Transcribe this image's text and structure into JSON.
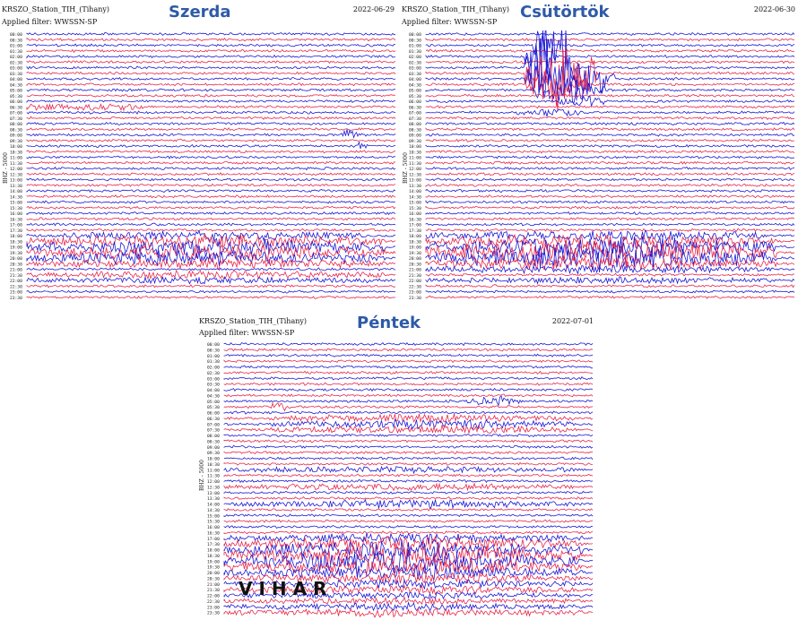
{
  "colors": {
    "blue": "#1a1ad6",
    "red": "#e8284a",
    "day_title": "#2e5aa8"
  },
  "overlay": {
    "text": "VIHAR"
  },
  "chart_data": [
    {
      "type": "line",
      "kind": "helicorder",
      "station": "KRSZO_Station_TIH_(Tihany)",
      "filter": "Applied filter: WWSSN-SP",
      "date": "2022-06-29",
      "day": "Szerda",
      "ylabel": "BHZ - 5000",
      "row_times": [
        "00:00",
        "00:30",
        "01:00",
        "01:30",
        "02:00",
        "02:30",
        "03:00",
        "03:30",
        "04:00",
        "04:30",
        "05:00",
        "05:30",
        "06:00",
        "06:30",
        "07:00",
        "07:30",
        "08:00",
        "08:30",
        "09:00",
        "09:30",
        "10:00",
        "10:30",
        "11:00",
        "11:30",
        "12:00",
        "12:30",
        "13:00",
        "13:30",
        "14:00",
        "14:30",
        "15:00",
        "15:30",
        "16:00",
        "16:30",
        "17:00",
        "17:30",
        "18:00",
        "18:30",
        "19:00",
        "19:30",
        "20:00",
        "20:30",
        "21:00",
        "21:30",
        "22:00",
        "22:30",
        "23:00",
        "23:30"
      ],
      "trace_colors": [
        "blue",
        "red"
      ]
    },
    {
      "type": "line",
      "kind": "helicorder",
      "station": "KRSZO_Station_TIH_(Tihany)",
      "filter": "Applied filter: WWSSN-SP",
      "date": "2022-06-30",
      "day": "Csütörtök",
      "ylabel": "BHZ - 5000",
      "row_times": [
        "00:00",
        "00:30",
        "01:00",
        "01:30",
        "02:00",
        "02:30",
        "03:00",
        "03:30",
        "04:00",
        "04:30",
        "05:00",
        "05:30",
        "06:00",
        "06:30",
        "07:00",
        "07:30",
        "08:00",
        "08:30",
        "09:00",
        "09:30",
        "10:00",
        "10:30",
        "11:00",
        "11:30",
        "12:00",
        "12:30",
        "13:00",
        "13:30",
        "14:00",
        "14:30",
        "15:00",
        "15:30",
        "16:00",
        "16:30",
        "17:00",
        "17:30",
        "18:00",
        "18:30",
        "19:00",
        "19:30",
        "20:00",
        "20:30",
        "21:00",
        "21:30",
        "22:00",
        "22:30",
        "23:00",
        "23:30"
      ],
      "trace_colors": [
        "blue",
        "red"
      ]
    },
    {
      "type": "line",
      "kind": "helicorder",
      "station": "KRSZO_Station_TIH_(Tihany)",
      "filter": "Applied filter: WWSSN-SP",
      "date": "2022-07-01",
      "day": "Péntek",
      "ylabel": "BHZ - 5000",
      "row_times": [
        "00:00",
        "00:30",
        "01:00",
        "01:30",
        "02:00",
        "02:30",
        "03:00",
        "03:30",
        "04:00",
        "04:30",
        "05:00",
        "05:30",
        "06:00",
        "06:30",
        "07:00",
        "07:30",
        "08:00",
        "08:30",
        "09:00",
        "09:30",
        "10:00",
        "10:30",
        "11:00",
        "11:30",
        "12:00",
        "12:30",
        "13:00",
        "13:30",
        "14:00",
        "14:30",
        "15:00",
        "15:30",
        "16:00",
        "16:30",
        "17:00",
        "17:30",
        "18:00",
        "18:30",
        "19:00",
        "19:30",
        "20:00",
        "20:30",
        "21:00",
        "21:30",
        "22:00",
        "22:30",
        "23:00",
        "23:30"
      ],
      "trace_colors": [
        "blue",
        "red"
      ]
    }
  ]
}
